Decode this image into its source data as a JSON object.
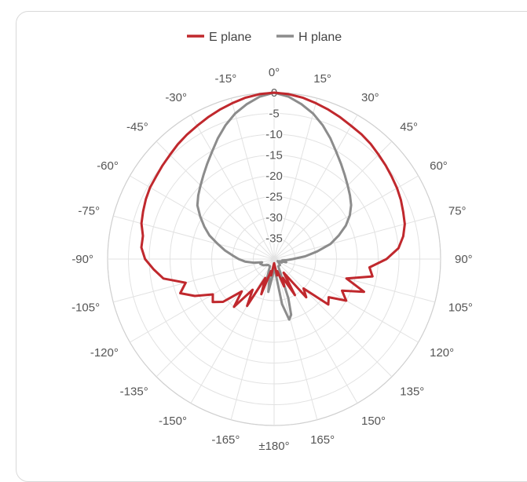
{
  "chart_data": {
    "type": "polar-line",
    "angular_ticks": [
      {
        "angle": 0,
        "label": "0°"
      },
      {
        "angle": 15,
        "label": "15°"
      },
      {
        "angle": 30,
        "label": "30°"
      },
      {
        "angle": 45,
        "label": "45°"
      },
      {
        "angle": 60,
        "label": "60°"
      },
      {
        "angle": 75,
        "label": "75°"
      },
      {
        "angle": 90,
        "label": "90°"
      },
      {
        "angle": 105,
        "label": "105°"
      },
      {
        "angle": 120,
        "label": "120°"
      },
      {
        "angle": 135,
        "label": "135°"
      },
      {
        "angle": 150,
        "label": "150°"
      },
      {
        "angle": 165,
        "label": "165°"
      },
      {
        "angle": 180,
        "label": "±180°"
      },
      {
        "angle": -165,
        "label": "-165°"
      },
      {
        "angle": -150,
        "label": "-150°"
      },
      {
        "angle": -135,
        "label": "-135°"
      },
      {
        "angle": -120,
        "label": "-120°"
      },
      {
        "angle": -105,
        "label": "-105°"
      },
      {
        "angle": -90,
        "label": "-90°"
      },
      {
        "angle": -75,
        "label": "-75°"
      },
      {
        "angle": -60,
        "label": "-60°"
      },
      {
        "angle": -45,
        "label": "-45°"
      },
      {
        "angle": -30,
        "label": "-30°"
      },
      {
        "angle": -15,
        "label": "-15°"
      }
    ],
    "radial_ticks": [
      "0",
      "-5",
      "-10",
      "-15",
      "-20",
      "-25",
      "-30",
      "-35"
    ],
    "radial_range": [
      -40,
      0
    ],
    "legend_position": "top-center",
    "grid": true,
    "series": [
      {
        "name": "E plane",
        "color": "#c0282d",
        "points": [
          [
            0,
            0
          ],
          [
            5,
            -0.2
          ],
          [
            10,
            -0.6
          ],
          [
            15,
            -1.2
          ],
          [
            20,
            -1.8
          ],
          [
            25,
            -2.4
          ],
          [
            30,
            -3.0
          ],
          [
            35,
            -3.4
          ],
          [
            40,
            -3.9
          ],
          [
            45,
            -4.5
          ],
          [
            50,
            -5.0
          ],
          [
            55,
            -5.5
          ],
          [
            60,
            -5.9
          ],
          [
            65,
            -6.4
          ],
          [
            70,
            -7.0
          ],
          [
            75,
            -7.5
          ],
          [
            80,
            -8.5
          ],
          [
            85,
            -10
          ],
          [
            90,
            -13
          ],
          [
            95,
            -17
          ],
          [
            100,
            -16
          ],
          [
            105,
            -22
          ],
          [
            110,
            -17
          ],
          [
            115,
            -22
          ],
          [
            120,
            -20
          ],
          [
            125,
            -24
          ],
          [
            130,
            -23
          ],
          [
            135,
            -30
          ],
          [
            140,
            -28
          ],
          [
            145,
            -36
          ],
          [
            150,
            -30
          ],
          [
            155,
            -35
          ],
          [
            160,
            -33
          ],
          [
            165,
            -37
          ],
          [
            170,
            -36
          ],
          [
            175,
            -38.5
          ],
          [
            180,
            -39
          ],
          [
            -175,
            -38.5
          ],
          [
            -170,
            -36
          ],
          [
            -165,
            -37
          ],
          [
            -160,
            -31
          ],
          [
            -155,
            -35
          ],
          [
            -150,
            -27
          ],
          [
            -145,
            -31
          ],
          [
            -140,
            -25
          ],
          [
            -135,
            -29
          ],
          [
            -130,
            -24
          ],
          [
            -125,
            -22
          ],
          [
            -120,
            -23
          ],
          [
            -115,
            -19
          ],
          [
            -110,
            -16
          ],
          [
            -105,
            -18
          ],
          [
            -100,
            -13
          ],
          [
            -95,
            -11
          ],
          [
            -90,
            -9
          ],
          [
            -85,
            -8
          ],
          [
            -80,
            -8
          ],
          [
            -75,
            -7
          ],
          [
            -70,
            -6.5
          ],
          [
            -65,
            -6
          ],
          [
            -60,
            -5.6
          ],
          [
            -55,
            -5.4
          ],
          [
            -50,
            -5.0
          ],
          [
            -45,
            -4.6
          ],
          [
            -40,
            -4.0
          ],
          [
            -35,
            -3.5
          ],
          [
            -30,
            -3.0
          ],
          [
            -25,
            -2.4
          ],
          [
            -20,
            -1.8
          ],
          [
            -15,
            -1.2
          ],
          [
            -10,
            -0.6
          ],
          [
            -5,
            -0.2
          ]
        ]
      },
      {
        "name": "H plane",
        "color": "#8c8c8c",
        "points": [
          [
            0,
            0
          ],
          [
            5,
            -0.8
          ],
          [
            10,
            -2.2
          ],
          [
            15,
            -3.8
          ],
          [
            20,
            -5.8
          ],
          [
            25,
            -8.0
          ],
          [
            30,
            -10.2
          ],
          [
            35,
            -12.0
          ],
          [
            40,
            -13.6
          ],
          [
            45,
            -15.0
          ],
          [
            50,
            -16.2
          ],
          [
            55,
            -17.4
          ],
          [
            60,
            -19.0
          ],
          [
            65,
            -21.0
          ],
          [
            70,
            -23.5
          ],
          [
            75,
            -26.0
          ],
          [
            80,
            -29.5
          ],
          [
            85,
            -32.5
          ],
          [
            90,
            -35.5
          ],
          [
            95,
            -37
          ],
          [
            100,
            -38
          ],
          [
            105,
            -37
          ],
          [
            110,
            -38.5
          ],
          [
            115,
            -38
          ],
          [
            120,
            -39
          ],
          [
            135,
            -38
          ],
          [
            150,
            -38
          ],
          [
            160,
            -30
          ],
          [
            163,
            -26
          ],
          [
            166,
            -25
          ],
          [
            170,
            -29
          ],
          [
            175,
            -37
          ],
          [
            180,
            -38
          ],
          [
            -175,
            -36
          ],
          [
            -170,
            -32
          ],
          [
            -165,
            -36
          ],
          [
            -160,
            -35
          ],
          [
            -150,
            -38
          ],
          [
            -135,
            -38
          ],
          [
            -120,
            -37
          ],
          [
            -110,
            -36.5
          ],
          [
            -105,
            -37
          ],
          [
            -100,
            -35
          ],
          [
            -95,
            -33
          ],
          [
            -90,
            -31.5
          ],
          [
            -85,
            -30
          ],
          [
            -80,
            -28
          ],
          [
            -75,
            -26
          ],
          [
            -70,
            -23.5
          ],
          [
            -65,
            -21.5
          ],
          [
            -60,
            -19.5
          ],
          [
            -55,
            -17.5
          ],
          [
            -50,
            -16.2
          ],
          [
            -45,
            -15.0
          ],
          [
            -40,
            -13.6
          ],
          [
            -35,
            -12.0
          ],
          [
            -30,
            -10.2
          ],
          [
            -25,
            -8.0
          ],
          [
            -20,
            -5.8
          ],
          [
            -15,
            -3.8
          ],
          [
            -10,
            -2.2
          ],
          [
            -5,
            -0.8
          ]
        ]
      }
    ]
  }
}
